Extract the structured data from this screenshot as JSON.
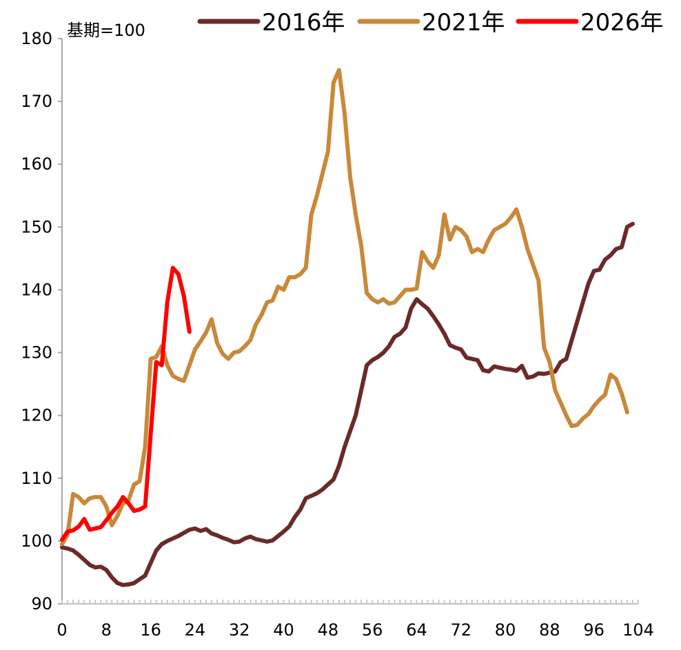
{
  "chart_data": {
    "type": "line",
    "unit_label": "基期=100",
    "xlabel": "",
    "ylabel": "",
    "xlim": [
      0,
      104
    ],
    "ylim": [
      90,
      180
    ],
    "x_ticks": [
      0,
      8,
      16,
      24,
      32,
      40,
      48,
      56,
      64,
      72,
      80,
      88,
      96,
      104
    ],
    "y_ticks": [
      90,
      100,
      110,
      120,
      130,
      140,
      150,
      160,
      170,
      180
    ],
    "grid": false,
    "legend_position": "top",
    "series": [
      {
        "name": "2016年",
        "color": "#6b2a2a",
        "points": [
          [
            0,
            99
          ],
          [
            1,
            98.8
          ],
          [
            2,
            98.5
          ],
          [
            3,
            97.8
          ],
          [
            4,
            97
          ],
          [
            5,
            96.2
          ],
          [
            6,
            95.8
          ],
          [
            7,
            95.9
          ],
          [
            8,
            95.4
          ],
          [
            9,
            94.2
          ],
          [
            10,
            93.3
          ],
          [
            11,
            93
          ],
          [
            12,
            93.1
          ],
          [
            13,
            93.3
          ],
          [
            14,
            93.9
          ],
          [
            15,
            94.5
          ],
          [
            16,
            96.5
          ],
          [
            17,
            98.5
          ],
          [
            18,
            99.5
          ],
          [
            19,
            100
          ],
          [
            20,
            100.4
          ],
          [
            21,
            100.8
          ],
          [
            22,
            101.3
          ],
          [
            23,
            101.8
          ],
          [
            24,
            102
          ],
          [
            25,
            101.6
          ],
          [
            26,
            101.9
          ],
          [
            27,
            101.2
          ],
          [
            28,
            100.9
          ],
          [
            29,
            100.5
          ],
          [
            30,
            100.2
          ],
          [
            31,
            99.8
          ],
          [
            32,
            99.9
          ],
          [
            33,
            100.4
          ],
          [
            34,
            100.7
          ],
          [
            35,
            100.3
          ],
          [
            36,
            100.1
          ],
          [
            37,
            99.9
          ],
          [
            38,
            100.1
          ],
          [
            39,
            100.8
          ],
          [
            40,
            101.5
          ],
          [
            41,
            102.3
          ],
          [
            42,
            103.8
          ],
          [
            43,
            105
          ],
          [
            44,
            106.8
          ],
          [
            45,
            107.2
          ],
          [
            46,
            107.6
          ],
          [
            47,
            108.2
          ],
          [
            48,
            109
          ],
          [
            49,
            109.8
          ],
          [
            50,
            112
          ],
          [
            51,
            115
          ],
          [
            52,
            117.5
          ],
          [
            53,
            120
          ],
          [
            54,
            124
          ],
          [
            55,
            128
          ],
          [
            56,
            128.8
          ],
          [
            57,
            129.3
          ],
          [
            58,
            130
          ],
          [
            59,
            131
          ],
          [
            60,
            132.5
          ],
          [
            61,
            133
          ],
          [
            62,
            134
          ],
          [
            63,
            137
          ],
          [
            64,
            138.5
          ],
          [
            65,
            137.7
          ],
          [
            66,
            137
          ],
          [
            67,
            135.8
          ],
          [
            68,
            134.5
          ],
          [
            69,
            133
          ],
          [
            70,
            131.2
          ],
          [
            71,
            130.8
          ],
          [
            72,
            130.5
          ],
          [
            73,
            129.2
          ],
          [
            74,
            129
          ],
          [
            75,
            128.8
          ],
          [
            76,
            127.2
          ],
          [
            77,
            127
          ],
          [
            78,
            127.8
          ],
          [
            79,
            127.6
          ],
          [
            80,
            127.4
          ],
          [
            81,
            127.3
          ],
          [
            82,
            127.1
          ],
          [
            83,
            127.9
          ],
          [
            84,
            126
          ],
          [
            85,
            126.2
          ],
          [
            86,
            126.7
          ],
          [
            87,
            126.6
          ],
          [
            88,
            126.8
          ],
          [
            89,
            127
          ],
          [
            90,
            128.5
          ],
          [
            91,
            129
          ],
          [
            92,
            132
          ],
          [
            93,
            135
          ],
          [
            94,
            138
          ],
          [
            95,
            141
          ],
          [
            96,
            143
          ],
          [
            97,
            143.2
          ],
          [
            98,
            144.8
          ],
          [
            99,
            145.5
          ],
          [
            100,
            146.5
          ],
          [
            101,
            146.8
          ],
          [
            102,
            150
          ],
          [
            103,
            150.5
          ]
        ]
      },
      {
        "name": "2021年",
        "color": "#c8893a",
        "points": [
          [
            0,
            99.5
          ],
          [
            1,
            101
          ],
          [
            2,
            107.5
          ],
          [
            3,
            107
          ],
          [
            4,
            106
          ],
          [
            5,
            106.8
          ],
          [
            6,
            107
          ],
          [
            7,
            107
          ],
          [
            8,
            105.5
          ],
          [
            9,
            102.5
          ],
          [
            10,
            104
          ],
          [
            11,
            106
          ],
          [
            12,
            106.5
          ],
          [
            13,
            109
          ],
          [
            14,
            109.5
          ],
          [
            15,
            115
          ],
          [
            16,
            129
          ],
          [
            17,
            129.3
          ],
          [
            18,
            131
          ],
          [
            19,
            128
          ],
          [
            20,
            126.3
          ],
          [
            21,
            125.8
          ],
          [
            22,
            125.5
          ],
          [
            23,
            128
          ],
          [
            24,
            130.5
          ],
          [
            25,
            131.8
          ],
          [
            26,
            133.2
          ],
          [
            27,
            135.3
          ],
          [
            28,
            131.5
          ],
          [
            29,
            129.8
          ],
          [
            30,
            129
          ],
          [
            31,
            130
          ],
          [
            32,
            130.2
          ],
          [
            33,
            131
          ],
          [
            34,
            132
          ],
          [
            35,
            134.5
          ],
          [
            36,
            136
          ],
          [
            37,
            138
          ],
          [
            38,
            138.3
          ],
          [
            39,
            140.5
          ],
          [
            40,
            140
          ],
          [
            41,
            142
          ],
          [
            42,
            142
          ],
          [
            43,
            142.5
          ],
          [
            44,
            143.5
          ],
          [
            45,
            152
          ],
          [
            46,
            155
          ],
          [
            47,
            158.5
          ],
          [
            48,
            162
          ],
          [
            49,
            173
          ],
          [
            50,
            175
          ],
          [
            51,
            168
          ],
          [
            52,
            158
          ],
          [
            53,
            152
          ],
          [
            54,
            147
          ],
          [
            55,
            139.5
          ],
          [
            56,
            138.5
          ],
          [
            57,
            138
          ],
          [
            58,
            138.5
          ],
          [
            59,
            137.8
          ],
          [
            60,
            138
          ],
          [
            61,
            139
          ],
          [
            62,
            140
          ],
          [
            63,
            140
          ],
          [
            64,
            140.2
          ],
          [
            65,
            146
          ],
          [
            66,
            144.5
          ],
          [
            67,
            143.5
          ],
          [
            68,
            145.5
          ],
          [
            69,
            152
          ],
          [
            70,
            148
          ],
          [
            71,
            150
          ],
          [
            72,
            149.5
          ],
          [
            73,
            148.5
          ],
          [
            74,
            146
          ],
          [
            75,
            146.5
          ],
          [
            76,
            146
          ],
          [
            77,
            148
          ],
          [
            78,
            149.5
          ],
          [
            79,
            150
          ],
          [
            80,
            150.5
          ],
          [
            81,
            151.5
          ],
          [
            82,
            152.8
          ],
          [
            83,
            150
          ],
          [
            84,
            146.5
          ],
          [
            85,
            144
          ],
          [
            86,
            141.5
          ],
          [
            87,
            130.8
          ],
          [
            88,
            128.5
          ],
          [
            89,
            124
          ],
          [
            90,
            122
          ],
          [
            91,
            120
          ],
          [
            92,
            118.3
          ],
          [
            93,
            118.5
          ],
          [
            94,
            119.5
          ],
          [
            95,
            120.2
          ],
          [
            96,
            121.5
          ],
          [
            97,
            122.5
          ],
          [
            98,
            123.3
          ],
          [
            99,
            126.5
          ],
          [
            100,
            125.8
          ],
          [
            101,
            123.5
          ],
          [
            102,
            120.5
          ]
        ]
      },
      {
        "name": "2026年",
        "color": "#ff0000",
        "points": [
          [
            0,
            100.2
          ],
          [
            1,
            101.5
          ],
          [
            2,
            101.7
          ],
          [
            3,
            102.3
          ],
          [
            4,
            103.5
          ],
          [
            5,
            101.8
          ],
          [
            6,
            102
          ],
          [
            7,
            102.2
          ],
          [
            8,
            103.3
          ],
          [
            9,
            104.5
          ],
          [
            10,
            105.5
          ],
          [
            11,
            107
          ],
          [
            12,
            106
          ],
          [
            13,
            104.8
          ],
          [
            14,
            105
          ],
          [
            15,
            105.5
          ],
          [
            16,
            117
          ],
          [
            17,
            128.5
          ],
          [
            18,
            128
          ],
          [
            19,
            138
          ],
          [
            20,
            143.5
          ],
          [
            21,
            142.5
          ],
          [
            22,
            139
          ],
          [
            23,
            133.3
          ]
        ]
      }
    ]
  }
}
